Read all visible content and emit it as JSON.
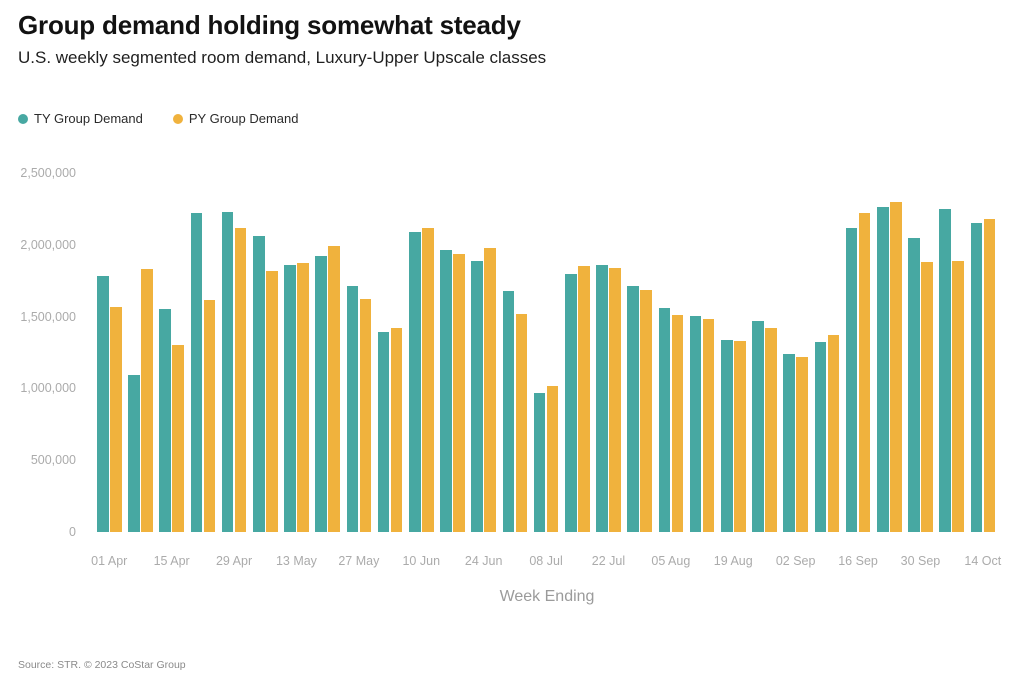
{
  "header": {
    "title": "Group demand holding somewhat steady",
    "subtitle": "U.S. weekly segmented room demand, Luxury-Upper Upscale classes"
  },
  "legend": [
    {
      "label": "TY Group Demand",
      "color": "#47A8A2"
    },
    {
      "label": "PY Group Demand",
      "color": "#F0B23D"
    }
  ],
  "footer": {
    "source": "Source: STR. © 2023 CoStar Group"
  },
  "chart_data": {
    "type": "bar",
    "title": "Group demand holding somewhat steady",
    "subtitle": "U.S. weekly segmented room demand, Luxury-Upper Upscale classes",
    "xlabel": "Week Ending",
    "ylabel": "",
    "ylim": [
      0,
      2500000
    ],
    "grid": false,
    "legend_position": "top-left",
    "y_ticks": [
      {
        "value": 0,
        "label": "0"
      },
      {
        "value": 500000,
        "label": "500,000"
      },
      {
        "value": 1000000,
        "label": "1,000,000"
      },
      {
        "value": 1500000,
        "label": "1,500,000"
      },
      {
        "value": 2000000,
        "label": "2,000,000"
      },
      {
        "value": 2500000,
        "label": "2,500,000"
      }
    ],
    "categories": [
      "01 Apr",
      "",
      "15 Apr",
      "",
      "29 Apr",
      "",
      "13 May",
      "",
      "27 May",
      "",
      "10 Jun",
      "",
      "24 Jun",
      "",
      "08 Jul",
      "",
      "22 Jul",
      "",
      "05 Aug",
      "",
      "19 Aug",
      "",
      "02 Sep",
      "",
      "16 Sep",
      "",
      "30 Sep",
      "",
      "14 Oct"
    ],
    "series": [
      {
        "name": "TY Group Demand",
        "color": "#47A8A2",
        "values": [
          1780000,
          1090000,
          1555000,
          2220000,
          2230000,
          2060000,
          1860000,
          1920000,
          1710000,
          1390000,
          2090000,
          1965000,
          1885000,
          1680000,
          970000,
          1800000,
          1860000,
          1710000,
          1560000,
          1505000,
          1340000,
          1470000,
          1240000,
          1320000,
          2120000,
          2260000,
          2045000,
          2250000,
          2150000
        ]
      },
      {
        "name": "PY Group Demand",
        "color": "#F0B23D",
        "values": [
          1570000,
          1835000,
          1305000,
          1615000,
          2120000,
          1820000,
          1870000,
          1990000,
          1625000,
          1420000,
          2120000,
          1935000,
          1980000,
          1520000,
          1015000,
          1850000,
          1840000,
          1685000,
          1510000,
          1480000,
          1330000,
          1420000,
          1220000,
          1370000,
          2220000,
          2300000,
          1880000,
          1890000,
          2180000
        ]
      }
    ]
  }
}
